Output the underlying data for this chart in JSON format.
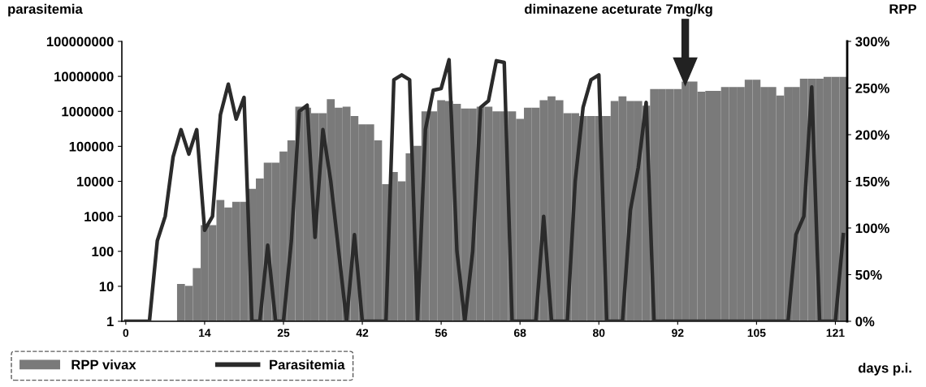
{
  "chart_data": {
    "type": "bar",
    "ylabel": "parasitemia",
    "y2label": "RPP",
    "xlabel": "days p.i.",
    "annotations": [
      "diminazene aceturate 7mg/kg"
    ],
    "categories": [
      "0",
      null,
      null,
      null,
      null,
      null,
      null,
      null,
      null,
      null,
      "14",
      null,
      null,
      null,
      null,
      null,
      null,
      null,
      null,
      null,
      "25",
      null,
      null,
      null,
      null,
      null,
      null,
      null,
      null,
      null,
      "42",
      null,
      null,
      null,
      null,
      null,
      null,
      null,
      null,
      null,
      "56",
      null,
      null,
      null,
      null,
      null,
      null,
      null,
      null,
      null,
      "68",
      null,
      null,
      null,
      null,
      null,
      null,
      null,
      null,
      null,
      "80",
      null,
      null,
      null,
      null,
      null,
      null,
      null,
      null,
      null,
      "92",
      null,
      null,
      null,
      null,
      null,
      null,
      null,
      null,
      null,
      "105",
      null,
      null,
      null,
      null,
      null,
      null,
      null,
      null,
      null,
      "121",
      null
    ],
    "series": [
      {
        "name": "RPP vivax",
        "axis": "y2",
        "color": "#7a7a7a",
        "values": [
          null,
          null,
          null,
          null,
          null,
          null,
          null,
          40,
          38,
          57,
          103,
          103,
          130,
          122,
          128,
          128,
          142,
          153,
          170,
          170,
          182,
          194,
          230,
          229,
          223,
          223,
          238,
          229,
          230,
          220,
          211,
          211,
          194,
          147,
          160,
          150,
          180,
          188,
          225,
          225,
          237,
          236,
          233,
          228,
          228,
          230,
          230,
          225,
          225,
          225,
          217,
          229,
          229,
          237,
          241,
          237,
          223,
          223,
          220,
          220,
          220,
          220,
          236,
          241,
          236,
          236,
          231,
          249,
          249,
          249,
          249,
          257,
          257,
          246,
          247,
          247,
          251,
          251,
          251,
          259,
          259,
          251,
          251,
          242,
          251,
          251,
          260,
          260,
          260,
          262,
          262,
          262
        ]
      },
      {
        "name": "Parasitemia",
        "type": "line",
        "color": "#2b2b2b",
        "line_style": "solid",
        "values": [
          1,
          1,
          1,
          1,
          200,
          1000,
          50000,
          300000,
          60000,
          300000,
          400,
          1000,
          800000,
          6000000,
          600000,
          2500000,
          1,
          1,
          150,
          1,
          1,
          200,
          1000000,
          1500000,
          250,
          300000,
          10000,
          100,
          1,
          300,
          1,
          1,
          1,
          1,
          8000000,
          11000000,
          8000000,
          1,
          300000,
          4000000,
          4500000,
          30000000,
          100,
          1,
          100,
          1300000,
          2000000,
          28000000,
          25000000,
          1,
          1,
          1,
          1,
          1000,
          1,
          1,
          1,
          10000,
          1300000,
          8000000,
          11000000,
          1,
          1,
          1,
          1500,
          25000,
          1800000,
          1,
          1,
          1,
          1,
          1,
          1,
          1,
          1,
          1,
          1,
          1,
          1,
          1,
          1,
          1,
          1,
          1,
          1,
          300,
          1000,
          5000000,
          1,
          1,
          1,
          300
        ]
      }
    ],
    "log": "y",
    "ylim": [
      1,
      100000000
    ],
    "yticks": [
      1,
      10,
      100,
      1000,
      10000,
      100000,
      1000000,
      10000000,
      100000000
    ],
    "y2lim": [
      0,
      300
    ],
    "y2ticks": [
      {
        "value": 0,
        "label": "0%"
      },
      {
        "value": 50,
        "label": "50%"
      },
      {
        "value": 100,
        "label": "100%"
      },
      {
        "value": 150,
        "label": "150%"
      },
      {
        "value": 200,
        "label": "200%"
      },
      {
        "value": 250,
        "label": "250%"
      },
      {
        "value": 300,
        "label": "300%"
      }
    ],
    "grid": false,
    "legend": "bottom"
  }
}
